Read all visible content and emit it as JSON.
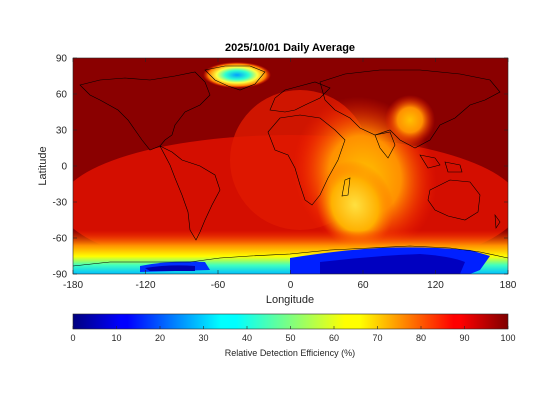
{
  "chart_data": {
    "type": "heatmap",
    "title": "2025/10/01 Daily Average",
    "xlabel": "Longitude",
    "ylabel": "Latitude",
    "xlim": [
      -180,
      180
    ],
    "ylim": [
      -90,
      90
    ],
    "xticks": [
      "-180",
      "-120",
      "-60",
      "0",
      "60",
      "120",
      "180"
    ],
    "yticks": [
      "90",
      "60",
      "30",
      "0",
      "-30",
      "-60",
      "-90"
    ],
    "colorbar": {
      "label": "Relative Detection Efficiency (%)",
      "range": [
        0,
        100
      ],
      "ticks": [
        "0",
        "10",
        "20",
        "30",
        "40",
        "50",
        "60",
        "70",
        "80",
        "90",
        "100"
      ],
      "colormap": "jet"
    },
    "background_value": 97,
    "regions": [
      {
        "name": "",
        "lon": [
          -82,
          -25
        ],
        "lat": [
          58,
          84
        ],
        "value": 32,
        "note": ""
      },
      {
        "name": "",
        "lon": [
          40,
          120
        ],
        "lat": [
          -65,
          50
        ],
        "value": 72
      },
      {
        "name": "",
        "lon": [
          -180,
          180
        ],
        "lat": [
          -90,
          -62
        ],
        "value": 55
      },
      {
        "name": "",
        "lon": [
          0,
          160
        ],
        "lat": [
          -88,
          -68
        ],
        "value": 10
      },
      {
        "name": "",
        "lon": [
          -140,
          -80
        ],
        "lat": [
          -86,
          -78
        ],
        "value": 8
      }
    ],
    "grid": false
  }
}
